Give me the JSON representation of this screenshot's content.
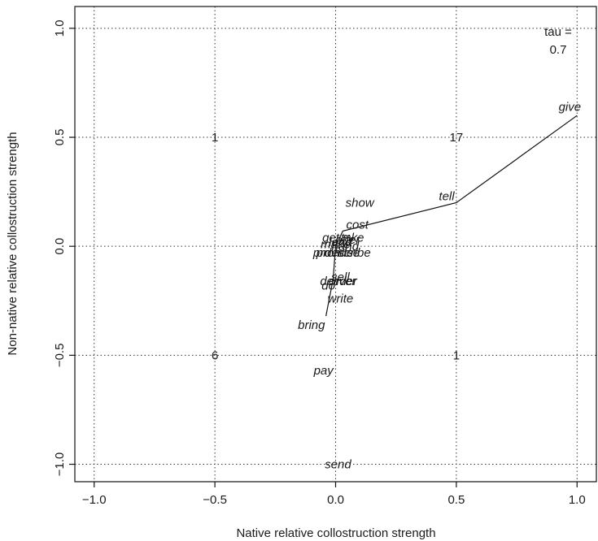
{
  "chart_data": {
    "type": "scatter",
    "xlabel": "Native relative collostruction strength",
    "ylabel": "Non-native relative collostruction strength",
    "xlim": [
      -1.08,
      1.08
    ],
    "ylim": [
      -1.08,
      1.1
    ],
    "x_ticks": [
      -1.0,
      -0.5,
      0.0,
      0.5,
      1.0
    ],
    "x_tick_labels": [
      "−1.0",
      "−0.5",
      "0.0",
      "0.5",
      "1.0"
    ],
    "y_ticks": [
      -1.0,
      -0.5,
      0.0,
      0.5,
      1.0
    ],
    "y_tick_labels": [
      "−1.0",
      "−0.5",
      "0.0",
      "0.5",
      "1.0"
    ],
    "grid": true,
    "tau_label": [
      "tau =",
      "0.7"
    ],
    "quadrant_counts": [
      {
        "label": "1",
        "x": -0.5,
        "y": 0.5
      },
      {
        "label": "17",
        "x": 0.5,
        "y": 0.5
      },
      {
        "label": "6",
        "x": -0.5,
        "y": -0.5
      },
      {
        "label": "1",
        "x": 0.5,
        "y": -0.5
      }
    ],
    "points": [
      {
        "label": "give",
        "x": 0.97,
        "y": 0.64
      },
      {
        "label": "tell",
        "x": 0.46,
        "y": 0.23
      },
      {
        "label": "show",
        "x": 0.1,
        "y": 0.2
      },
      {
        "label": "cost",
        "x": 0.09,
        "y": 0.1
      },
      {
        "label": "get",
        "x": -0.02,
        "y": 0.04
      },
      {
        "label": "offer",
        "x": 0.05,
        "y": 0.03
      },
      {
        "label": "lend",
        "x": 0.02,
        "y": 0.02
      },
      {
        "label": "take",
        "x": 0.07,
        "y": 0.04
      },
      {
        "label": "make",
        "x": 0.0,
        "y": 0.01
      },
      {
        "label": "hand",
        "x": 0.04,
        "y": 0.0
      },
      {
        "label": "provide",
        "x": -0.01,
        "y": -0.03
      },
      {
        "label": "promise",
        "x": 0.01,
        "y": -0.03
      },
      {
        "label": "describe",
        "x": 0.05,
        "y": -0.03
      },
      {
        "label": "sell",
        "x": 0.02,
        "y": -0.14
      },
      {
        "label": "do",
        "x": -0.03,
        "y": -0.18
      },
      {
        "label": "deliver",
        "x": 0.01,
        "y": -0.16
      },
      {
        "label": "order",
        "x": 0.03,
        "y": -0.16
      },
      {
        "label": "write",
        "x": 0.02,
        "y": -0.24
      },
      {
        "label": "bring",
        "x": -0.1,
        "y": -0.36
      },
      {
        "label": "pay",
        "x": -0.05,
        "y": -0.57
      },
      {
        "label": "send",
        "x": 0.01,
        "y": -1.0
      }
    ],
    "line_path": [
      {
        "x": 1.0,
        "y": 0.6
      },
      {
        "x": 0.5,
        "y": 0.2
      },
      {
        "x": 0.03,
        "y": 0.07
      },
      {
        "x": 0.0,
        "y": 0.0
      },
      {
        "x": -0.01,
        "y": -0.15
      },
      {
        "x": -0.04,
        "y": -0.32
      }
    ]
  }
}
